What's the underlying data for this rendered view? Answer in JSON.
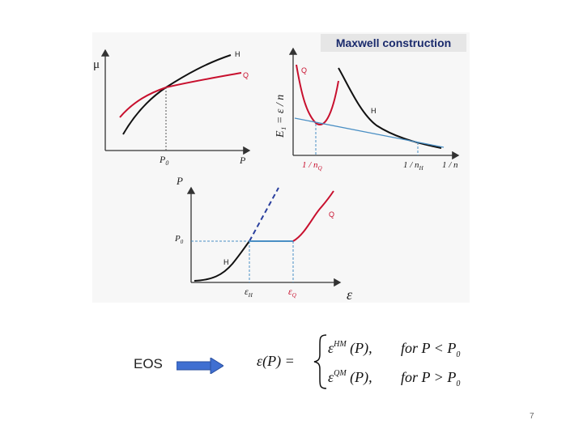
{
  "panel_title": "Maxwell construction",
  "top_left_plot": {
    "y_label": "μ",
    "x_label": "P",
    "x_tick": "P",
    "x_tick_sub": "0",
    "curve_h_label": "H",
    "curve_q_label": "Q"
  },
  "top_right_plot": {
    "y_label": "E₁ = ε / n",
    "curve_q_label": "Q",
    "curve_h_label": "H",
    "x_tick_q": "1 / n",
    "x_tick_q_sub": "Q",
    "x_tick_h": "1 / n",
    "x_tick_h_sub": "H",
    "x_label": "1 / n"
  },
  "bottom_plot": {
    "y_label": "P",
    "y_tick": "P",
    "y_tick_sub": "0",
    "curve_q_label": "Q",
    "curve_h_label": "H",
    "x_tick_h": "ε",
    "x_tick_h_sub": "H",
    "x_tick_q": "ε",
    "x_tick_q_sub": "Q",
    "x_label": "ε"
  },
  "eos_label": "EOS",
  "equation": {
    "lhs": "ε(P) =",
    "case1_expr": "ε",
    "case1_sup": "HM",
    "case1_arg": " (P),",
    "case1_cond": "for  P < P",
    "case1_cond_sub": "0",
    "case2_expr": "ε",
    "case2_sup": "QM",
    "case2_arg": " (P),",
    "case2_cond": "for  P > P",
    "case2_cond_sub": "0"
  },
  "page_number": "7",
  "colors": {
    "hadron_curve": "#111111",
    "quark_curve": "#c8102e",
    "tangent_line": "#4a8fc4",
    "arrow": "#3f6fd1",
    "title_bar": "#e6e6e6",
    "panel_bg": "#f7f7f7"
  }
}
